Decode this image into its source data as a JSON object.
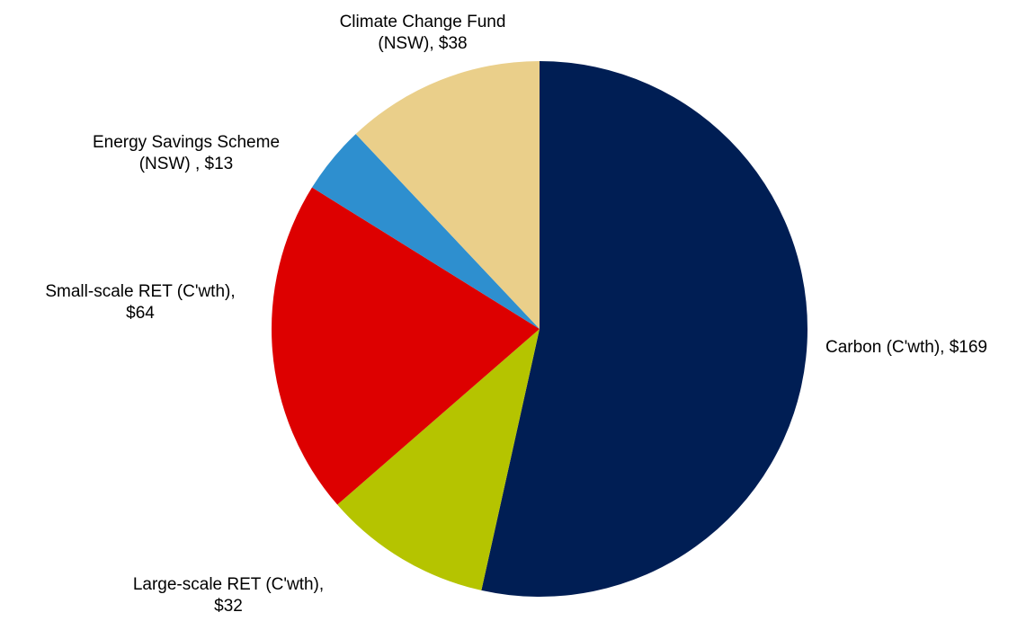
{
  "chart_data": {
    "type": "pie",
    "title": "",
    "slices": [
      {
        "label_lines": [
          "Carbon (C'wth), $169"
        ],
        "name": "Carbon (C'wth)",
        "value": 169,
        "color": "#001E54"
      },
      {
        "label_lines": [
          "Large-scale RET (C'wth),",
          "$32"
        ],
        "name": "Large-scale RET (C'wth)",
        "value": 32,
        "color": "#B5C400"
      },
      {
        "label_lines": [
          "Small-scale RET (C'wth),",
          "$64"
        ],
        "name": "Small-scale RET (C'wth)",
        "value": 64,
        "color": "#DD0000"
      },
      {
        "label_lines": [
          "Energy Savings Scheme",
          "(NSW) , $13"
        ],
        "name": "Energy Savings Scheme (NSW)",
        "value": 13,
        "color": "#2E8FCF"
      },
      {
        "label_lines": [
          "Climate Change Fund",
          "(NSW), $38"
        ],
        "name": "Climate Change Fund (NSW)",
        "value": 38,
        "color": "#EACF8A"
      }
    ],
    "start": "12 o'clock",
    "direction": "clockwise",
    "legend": "none"
  }
}
